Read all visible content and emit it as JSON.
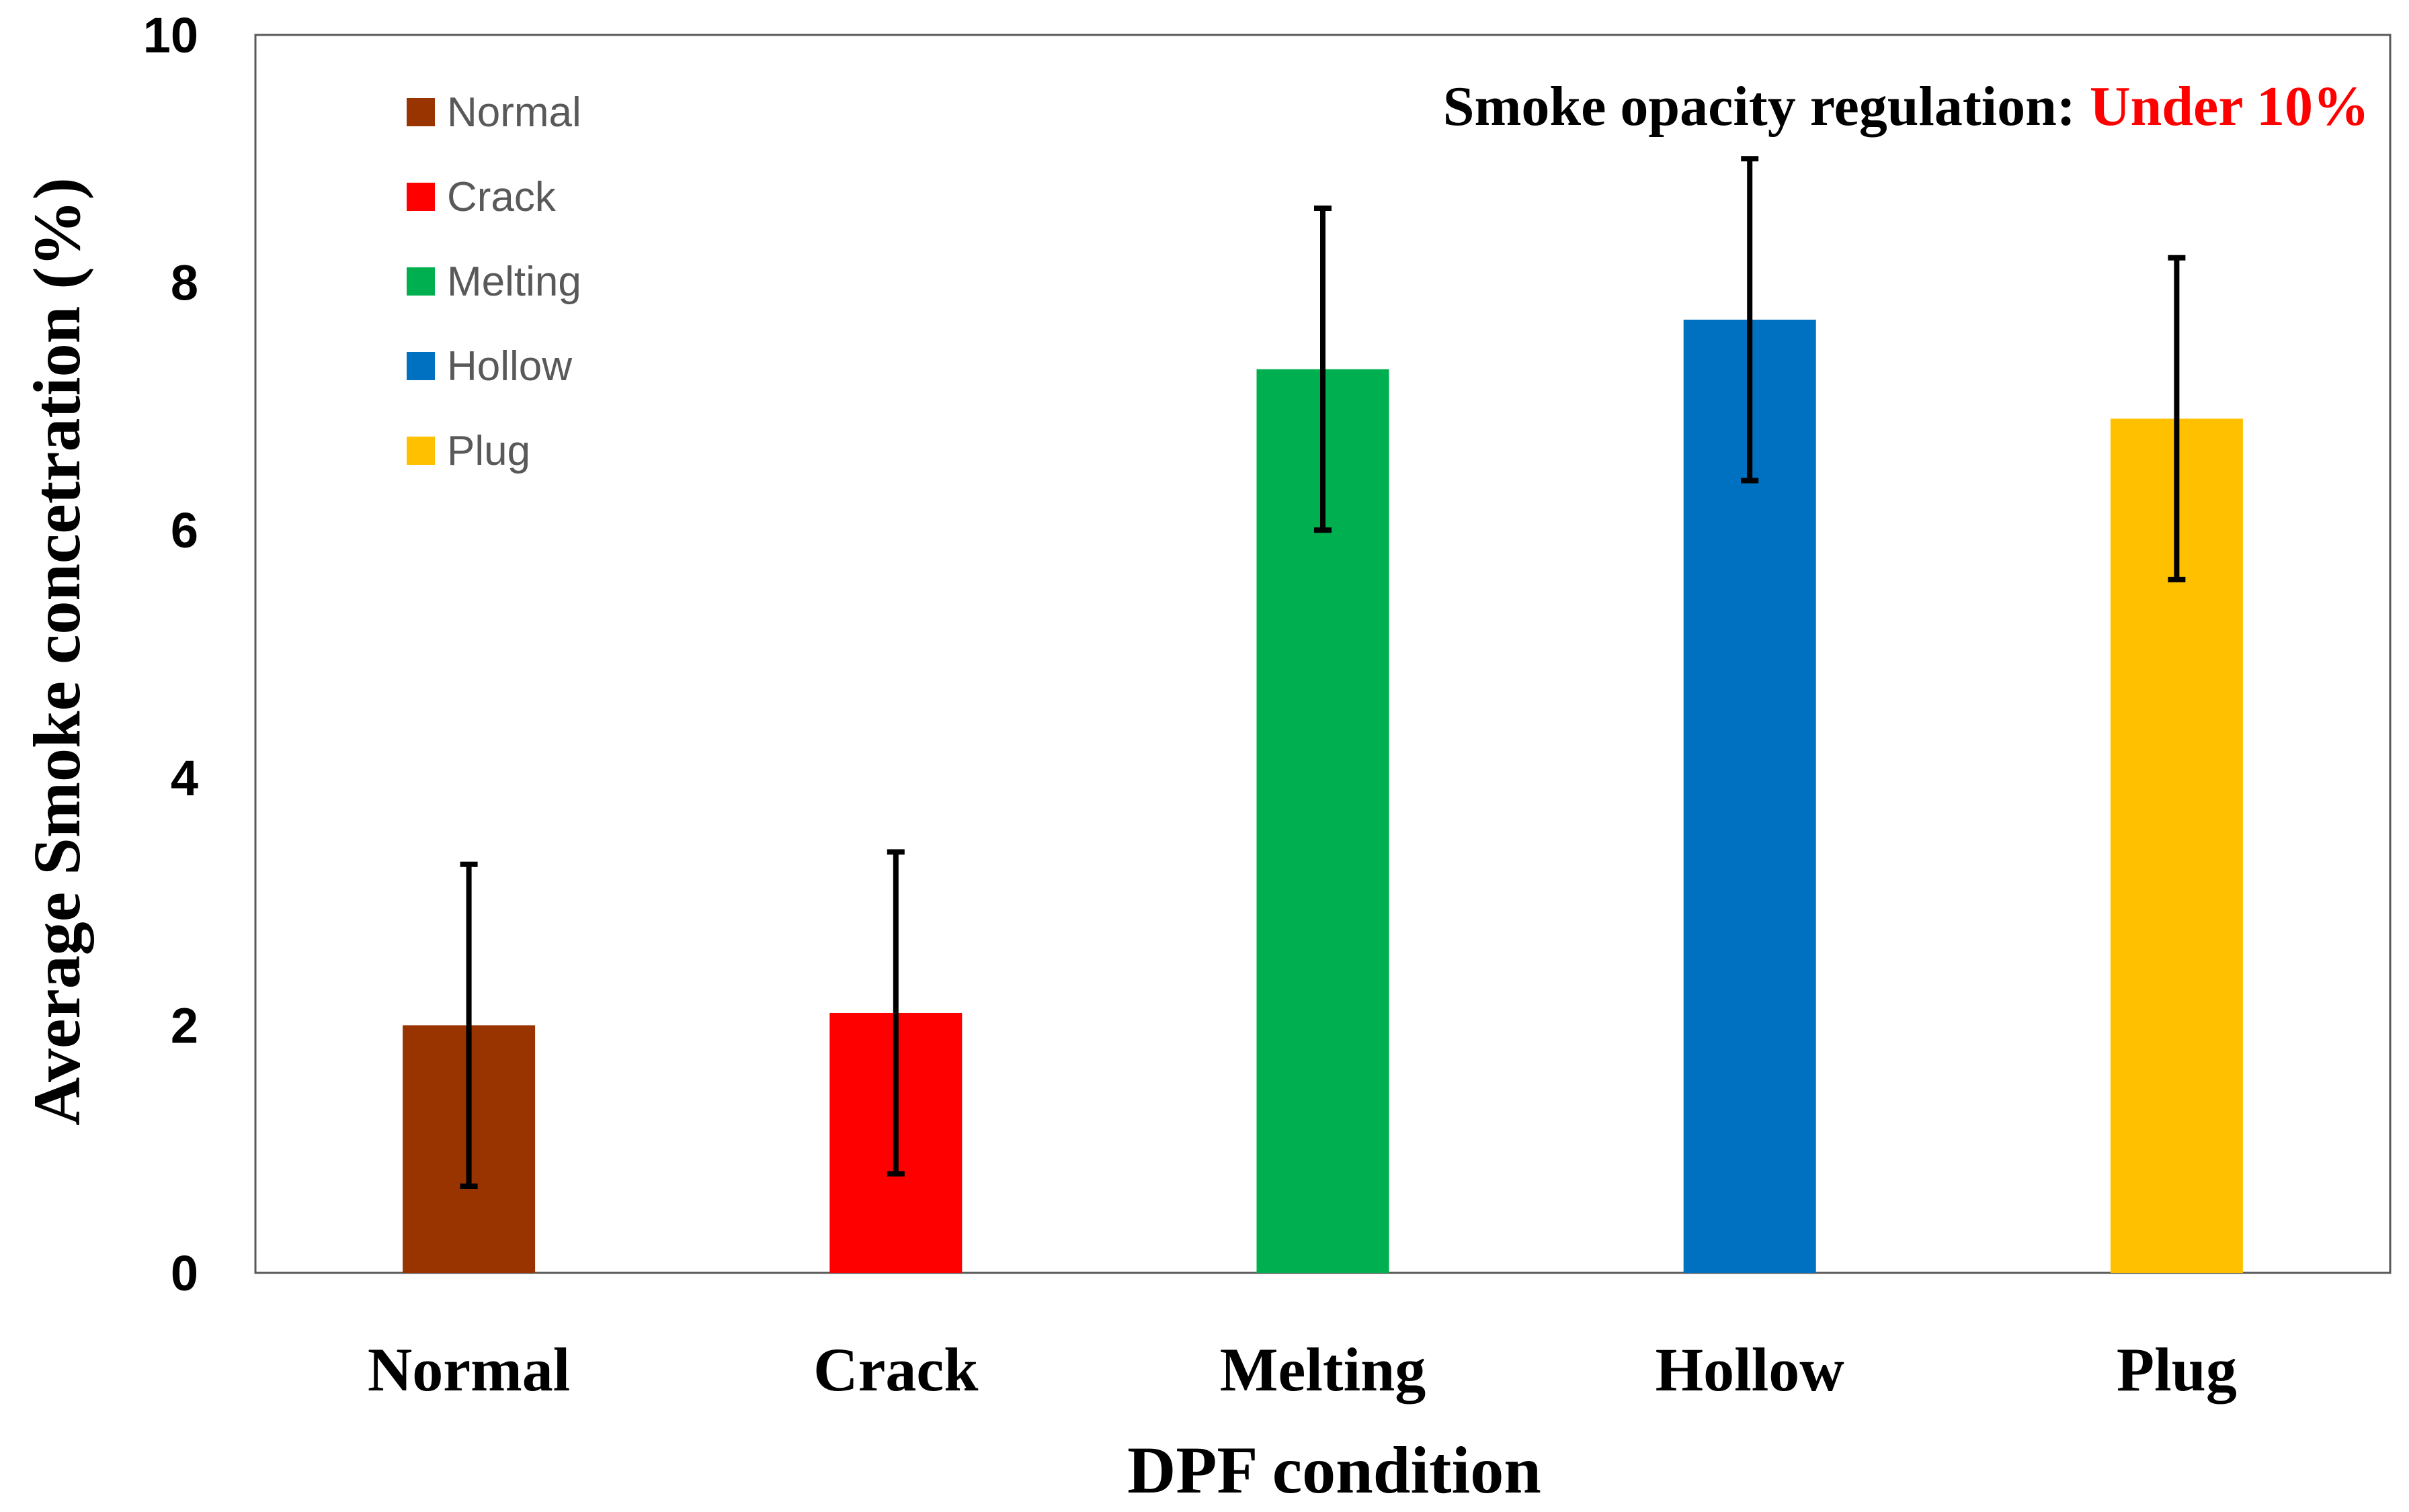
{
  "chart_data": {
    "type": "bar",
    "categories": [
      "Normal",
      "Crack",
      "Melting",
      "Hollow",
      "Plug"
    ],
    "values": [
      2.0,
      2.1,
      7.3,
      7.7,
      6.9
    ],
    "error_low": [
      0.7,
      0.8,
      6.0,
      6.4,
      5.6
    ],
    "error_high": [
      3.3,
      3.4,
      8.6,
      9.0,
      8.2
    ],
    "colors": [
      "#993300",
      "#ff0000",
      "#00b050",
      "#0070c0",
      "#ffc000"
    ],
    "xlabel": "DPF condition",
    "ylabel": "Average Smoke concetration (%)",
    "ylim": [
      0,
      10
    ],
    "yticks": [
      "0",
      "2",
      "4",
      "6",
      "8",
      "10"
    ],
    "legend": [
      "Normal",
      "Crack",
      "Melting",
      "Hollow",
      "Plug"
    ],
    "legend_position": "top-left",
    "annotation": {
      "prefix": "Smoke opacity regulation: ",
      "highlight": "Under 10%",
      "highlight_color": "#ff0000"
    }
  }
}
